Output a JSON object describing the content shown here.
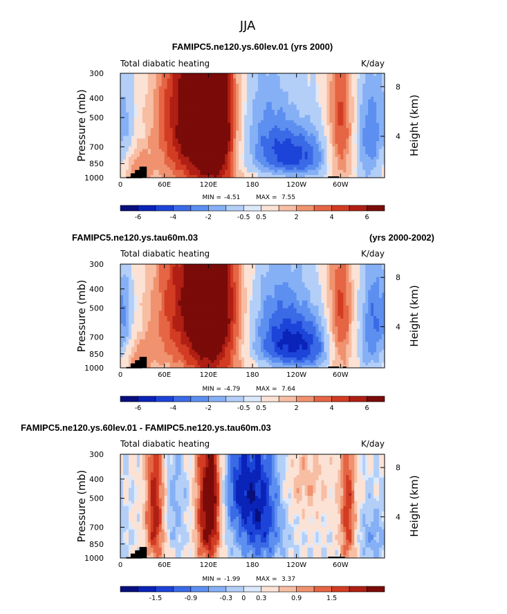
{
  "page_title": "JJA",
  "colors": {
    "scale_heating": [
      "#08107e",
      "#0a23b8",
      "#1c44d8",
      "#3a6ae6",
      "#5c8ff0",
      "#86b0f5",
      "#b3cff8",
      "#dce9fb",
      "#fbe2d5",
      "#f7bea4",
      "#f0926f",
      "#e56544",
      "#d23c22",
      "#b01f14",
      "#7a0b09"
    ],
    "mask": "#000000"
  },
  "chart_data": [
    {
      "type": "heatmap",
      "title": "FAMIPC5.ne120.ys.60lev.01 (yrs 2000)",
      "subtitle_left": "Total diabatic heating",
      "subtitle_right": "K/day",
      "ylabel": "Pressure  (mb)",
      "ylabel_right": "Height  (km)",
      "x_ticks": [
        "0",
        "60E",
        "120E",
        "180",
        "120W",
        "60W"
      ],
      "y_ticks": [
        "300",
        "400",
        "500",
        "700",
        "850",
        "1000"
      ],
      "y2_ticks": [
        "8",
        "4"
      ],
      "min_label": "MIN =",
      "min_value": "-4.51",
      "max_label": "MAX =",
      "max_value": "7.55",
      "colorbar_labels": [
        "-6",
        "-4",
        "-2",
        "-0.5",
        "0.5",
        "2",
        "4",
        "6"
      ],
      "field": {
        "x_extent_deg": [
          0,
          360
        ],
        "p_extent_mb": [
          300,
          1000
        ],
        "anomalies": [
          {
            "lon": 80,
            "p": 500,
            "wlon": 28,
            "wp": 420,
            "amp": 4.5
          },
          {
            "lon": 118,
            "p": 480,
            "wlon": 22,
            "wp": 500,
            "amp": 5.5
          },
          {
            "lon": 140,
            "p": 520,
            "wlon": 16,
            "wp": 400,
            "amp": 3.8
          },
          {
            "lon": 300,
            "p": 580,
            "wlon": 14,
            "wp": 380,
            "amp": 4.2
          },
          {
            "lon": 20,
            "p": 900,
            "wlon": 18,
            "wp": 160,
            "amp": 2.5
          },
          {
            "lon": 240,
            "p": 780,
            "wlon": 35,
            "wp": 180,
            "amp": -3.8
          },
          {
            "lon": 200,
            "p": 520,
            "wlon": 25,
            "wp": 300,
            "amp": -1.8
          },
          {
            "lon": 340,
            "p": 620,
            "wlon": 14,
            "wp": 300,
            "amp": -2.8
          },
          {
            "lon": 8,
            "p": 620,
            "wlon": 8,
            "wp": 250,
            "amp": -1.5
          },
          {
            "lon": 200,
            "p": 980,
            "wlon": 50,
            "wp": 60,
            "amp": 1.0
          }
        ],
        "mask": [
          [
            8,
            30,
            990,
            1000
          ],
          [
            14,
            26,
            950,
            1000
          ],
          [
            20,
            28,
            915,
            1000
          ],
          [
            26,
            36,
            880,
            1000
          ],
          [
            283,
            298,
            985,
            1000
          ]
        ]
      }
    },
    {
      "type": "heatmap",
      "title": "FAMIPC5.ne120.ys.tau60m.03",
      "title_right": "(yrs 2000-2002)",
      "subtitle_left": "Total diabatic heating",
      "subtitle_right": "K/day",
      "ylabel": "Pressure  (mb)",
      "ylabel_right": "Height  (km)",
      "x_ticks": [
        "0",
        "60E",
        "120E",
        "180",
        "120W",
        "60W"
      ],
      "y_ticks": [
        "300",
        "400",
        "500",
        "700",
        "850",
        "1000"
      ],
      "y2_ticks": [
        "8",
        "4"
      ],
      "min_label": "MIN =",
      "min_value": "-4.79",
      "max_label": "MAX =",
      "max_value": "7.64",
      "colorbar_labels": [
        "-6",
        "-4",
        "-2",
        "-0.5",
        "0.5",
        "2",
        "4",
        "6"
      ],
      "field": {
        "x_extent_deg": [
          0,
          360
        ],
        "p_extent_mb": [
          300,
          1000
        ],
        "anomalies": [
          {
            "lon": 80,
            "p": 480,
            "wlon": 30,
            "wp": 420,
            "amp": 3.8
          },
          {
            "lon": 120,
            "p": 470,
            "wlon": 20,
            "wp": 500,
            "amp": 4.8
          },
          {
            "lon": 150,
            "p": 540,
            "wlon": 18,
            "wp": 380,
            "amp": 2.8
          },
          {
            "lon": 300,
            "p": 600,
            "wlon": 14,
            "wp": 360,
            "amp": 4.0
          },
          {
            "lon": 20,
            "p": 900,
            "wlon": 18,
            "wp": 160,
            "amp": 2.2
          },
          {
            "lon": 245,
            "p": 780,
            "wlon": 38,
            "wp": 200,
            "amp": -3.5
          },
          {
            "lon": 215,
            "p": 520,
            "wlon": 28,
            "wp": 320,
            "amp": -1.6
          },
          {
            "lon": 345,
            "p": 620,
            "wlon": 14,
            "wp": 300,
            "amp": -2.6
          },
          {
            "lon": 8,
            "p": 640,
            "wlon": 8,
            "wp": 250,
            "amp": -1.5
          },
          {
            "lon": 200,
            "p": 985,
            "wlon": 50,
            "wp": 60,
            "amp": 0.9
          }
        ],
        "mask": [
          [
            8,
            30,
            990,
            1000
          ],
          [
            14,
            26,
            950,
            1000
          ],
          [
            20,
            28,
            915,
            1000
          ],
          [
            26,
            36,
            880,
            1000
          ],
          [
            283,
            298,
            985,
            1000
          ],
          [
            303,
            308,
            985,
            1000
          ]
        ]
      }
    },
    {
      "type": "heatmap",
      "title": "FAMIPC5.ne120.ys.60lev.01 - FAMIPC5.ne120.ys.tau60m.03",
      "subtitle_left": "Total diabatic heating",
      "subtitle_right": "K/day",
      "ylabel": "Pressure  (mb)",
      "ylabel_right": "Height  (km)",
      "x_ticks": [
        "0",
        "60E",
        "120E",
        "180",
        "120W",
        "60W"
      ],
      "y_ticks": [
        "300",
        "400",
        "500",
        "700",
        "850",
        "1000"
      ],
      "y2_ticks": [
        "8",
        "4"
      ],
      "min_label": "MIN =",
      "min_value": "-1.99",
      "max_label": "MAX =",
      "max_value": "3.37",
      "colorbar_labels": [
        "-1.5",
        "-0.9",
        "-0.3",
        "0",
        "0.3",
        "0.9",
        "1.5"
      ],
      "field": {
        "x_extent_deg": [
          0,
          360
        ],
        "p_extent_mb": [
          300,
          1000
        ],
        "anomalies": [
          {
            "lon": 48,
            "p": 560,
            "wlon": 10,
            "wp": 380,
            "amp": 1.8
          },
          {
            "lon": 115,
            "p": 560,
            "wlon": 10,
            "wp": 400,
            "amp": 1.6
          },
          {
            "lon": 128,
            "p": 520,
            "wlon": 8,
            "wp": 360,
            "amp": 1.3
          },
          {
            "lon": 310,
            "p": 600,
            "wlon": 8,
            "wp": 380,
            "amp": 1.4
          },
          {
            "lon": 190,
            "p": 560,
            "wlon": 22,
            "wp": 360,
            "amp": -1.6
          },
          {
            "lon": 160,
            "p": 420,
            "wlon": 14,
            "wp": 200,
            "amp": -0.9
          },
          {
            "lon": 70,
            "p": 540,
            "wlon": 14,
            "wp": 260,
            "amp": -0.6
          },
          {
            "lon": 250,
            "p": 420,
            "wlon": 25,
            "wp": 150,
            "amp": 0.6
          },
          {
            "lon": 345,
            "p": 780,
            "wlon": 14,
            "wp": 200,
            "amp": -0.6
          }
        ],
        "mask": [
          [
            8,
            30,
            990,
            1000
          ],
          [
            14,
            26,
            950,
            1000
          ],
          [
            20,
            28,
            915,
            1000
          ],
          [
            26,
            36,
            880,
            1000
          ],
          [
            283,
            306,
            985,
            1000
          ]
        ]
      }
    }
  ]
}
